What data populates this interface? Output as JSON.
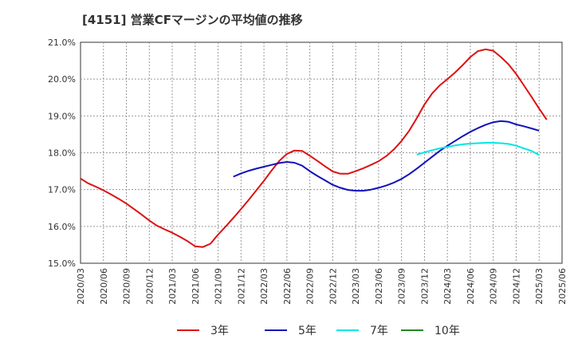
{
  "chart_data": {
    "type": "line",
    "title": "[4151]  営業CFマージンの平均値の推移",
    "xlabel": "",
    "ylabel": "",
    "ylim": [
      15.0,
      21.0
    ],
    "y_ticks": [
      "15.0%",
      "16.0%",
      "17.0%",
      "18.0%",
      "19.0%",
      "20.0%",
      "21.0%"
    ],
    "x_ticks": [
      "2020/03",
      "2020/06",
      "2020/09",
      "2020/12",
      "2021/03",
      "2021/06",
      "2021/09",
      "2021/12",
      "2022/03",
      "2022/06",
      "2022/09",
      "2022/12",
      "2023/03",
      "2023/06",
      "2023/09",
      "2023/12",
      "2024/03",
      "2024/06",
      "2024/09",
      "2024/12",
      "2025/03",
      "2025/06"
    ],
    "grid": true,
    "legend_placement": "bottom",
    "series": [
      {
        "name": "3年",
        "color": "#dd1111",
        "values": [
          17.3,
          17.17,
          17.08,
          16.98,
          16.87,
          16.75,
          16.62,
          16.47,
          16.32,
          16.16,
          16.02,
          15.92,
          15.83,
          15.72,
          15.6,
          15.46,
          15.44,
          15.53,
          15.78,
          16.0,
          16.23,
          16.47,
          16.72,
          16.98,
          17.24,
          17.52,
          17.78,
          17.97,
          18.06,
          18.05,
          17.92,
          17.78,
          17.63,
          17.49,
          17.43,
          17.43,
          17.5,
          17.58,
          17.67,
          17.77,
          17.91,
          18.09,
          18.32,
          18.6,
          18.94,
          19.31,
          19.61,
          19.83,
          20.0,
          20.18,
          20.38,
          20.6,
          20.76,
          20.81,
          20.77,
          20.6,
          20.4,
          20.14,
          19.83,
          19.52,
          19.2,
          18.9
        ]
      },
      {
        "name": "5年",
        "color": "#1111bb",
        "values": [
          null,
          null,
          null,
          null,
          null,
          null,
          null,
          null,
          null,
          null,
          null,
          null,
          null,
          null,
          null,
          null,
          null,
          null,
          null,
          null,
          17.35,
          17.44,
          17.51,
          17.57,
          17.62,
          17.67,
          17.72,
          17.75,
          17.73,
          17.65,
          17.5,
          17.37,
          17.25,
          17.13,
          17.05,
          16.99,
          16.97,
          16.97,
          17.0,
          17.05,
          17.11,
          17.19,
          17.29,
          17.42,
          17.57,
          17.73,
          17.89,
          18.05,
          18.19,
          18.32,
          18.45,
          18.57,
          18.67,
          18.76,
          18.83,
          18.86,
          18.84,
          18.77,
          18.72,
          18.66,
          18.6
        ]
      },
      {
        "name": "7年",
        "color": "#00e6e6",
        "values": [
          null,
          null,
          null,
          null,
          null,
          null,
          null,
          null,
          null,
          null,
          null,
          null,
          null,
          null,
          null,
          null,
          null,
          null,
          null,
          null,
          null,
          null,
          null,
          null,
          null,
          null,
          null,
          null,
          null,
          null,
          null,
          null,
          null,
          null,
          null,
          null,
          null,
          null,
          null,
          null,
          null,
          null,
          null,
          null,
          17.95,
          18.01,
          18.07,
          18.12,
          18.16,
          18.2,
          18.23,
          18.25,
          18.26,
          18.27,
          18.27,
          18.26,
          18.24,
          18.19,
          18.12,
          18.05,
          17.94
        ]
      },
      {
        "name": "10年",
        "color": "#228822",
        "values": []
      }
    ]
  }
}
